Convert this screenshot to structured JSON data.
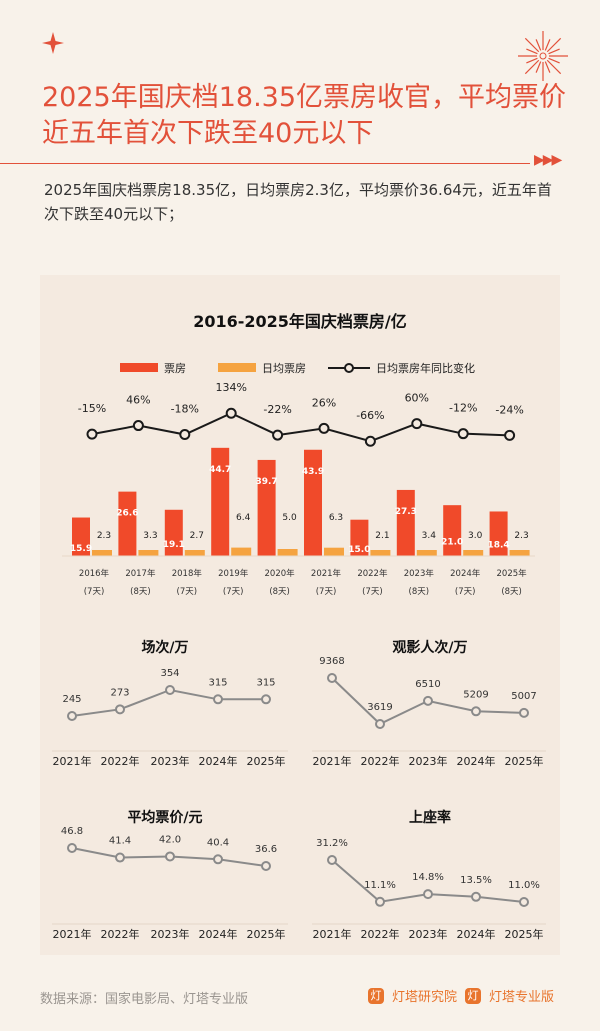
{
  "header": {
    "title": "2025年国庆档18.35亿票房收官，平均票价近五年首次下跌至40元以下",
    "summary": "2025年国庆档票房18.35亿，日均票房2.3亿，平均票价36.64元，近五年首次下跌至40元以下；"
  },
  "footer": {
    "source": "数据来源：国家电影局、灯塔专业版",
    "brand1": "灯塔研究院",
    "brand2": "灯塔专业版"
  },
  "colors": {
    "accent": "#e2513a",
    "bar_red": "#f04a2a",
    "bar_orange": "#f5a340",
    "line": "#1a1a1a",
    "small_line": "#8a8a8a"
  },
  "chart_data": [
    {
      "type": "bar",
      "title": "2016-2025年国庆档票房/亿",
      "categories": [
        "2016年",
        "2017年",
        "2018年",
        "2019年",
        "2020年",
        "2021年",
        "2022年",
        "2023年",
        "2024年",
        "2025年"
      ],
      "sublabels": [
        "(7天)",
        "(8天)",
        "(7天)",
        "(7天)",
        "(8天)",
        "(7天)",
        "(7天)",
        "(8天)",
        "(7天)",
        "(8天)"
      ],
      "series": [
        {
          "name": "票房",
          "type": "bar",
          "values": [
            15.9,
            26.6,
            19.1,
            44.7,
            39.7,
            43.9,
            15.0,
            27.3,
            21.0,
            18.4
          ]
        },
        {
          "name": "日均票房",
          "type": "bar",
          "values": [
            2.3,
            3.3,
            2.7,
            6.4,
            5.0,
            6.3,
            2.1,
            3.4,
            3.0,
            2.3
          ]
        },
        {
          "name": "日均票房年同比变化",
          "type": "line",
          "values": [
            -15,
            46,
            -18,
            134,
            -22,
            26,
            -66,
            60,
            -12,
            -24
          ],
          "labels": [
            "-15%",
            "46%",
            "-18%",
            "134%",
            "-22%",
            "26%",
            "-66%",
            "60%",
            "-12%",
            "-24%"
          ]
        }
      ],
      "legend": "top"
    },
    {
      "type": "line",
      "title": "场次/万",
      "categories": [
        "2021年",
        "2022年",
        "2023年",
        "2024年",
        "2025年"
      ],
      "values": [
        245,
        273,
        354,
        315,
        315
      ],
      "labels": [
        "245",
        "273",
        "354",
        "315",
        "315"
      ]
    },
    {
      "type": "line",
      "title": "观影人次/万",
      "categories": [
        "2021年",
        "2022年",
        "2023年",
        "2024年",
        "2025年"
      ],
      "values": [
        9368,
        3619,
        6510,
        5209,
        5007
      ],
      "labels": [
        "9368",
        "3619",
        "6510",
        "5209",
        "5007"
      ]
    },
    {
      "type": "line",
      "title": "平均票价/元",
      "categories": [
        "2021年",
        "2022年",
        "2023年",
        "2024年",
        "2025年"
      ],
      "values": [
        46.8,
        41.4,
        42.0,
        40.4,
        36.6
      ],
      "labels": [
        "46.8",
        "41.4",
        "42.0",
        "40.4",
        "36.6"
      ]
    },
    {
      "type": "line",
      "title": "上座率",
      "categories": [
        "2021年",
        "2022年",
        "2023年",
        "2024年",
        "2025年"
      ],
      "values": [
        31.2,
        11.1,
        14.8,
        13.5,
        11.0
      ],
      "labels": [
        "31.2%",
        "11.1%",
        "14.8%",
        "13.5%",
        "11.0%"
      ]
    }
  ]
}
